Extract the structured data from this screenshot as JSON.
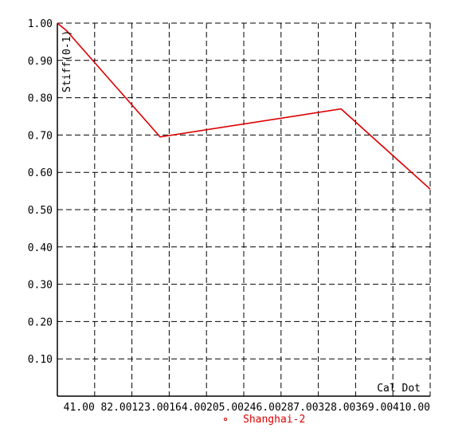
{
  "chart_data": {
    "type": "line",
    "title": "",
    "xlabel": "Cal Dot",
    "ylabel": "Stiff(0-1)",
    "xlim": [
      0,
      410
    ],
    "ylim": [
      0,
      1.0
    ],
    "x_ticks": [
      41,
      82,
      123,
      164,
      205,
      246,
      287,
      328,
      369,
      410
    ],
    "x_tick_labels": [
      "41.00",
      "82.00",
      "123.00",
      "164.00",
      "205.00",
      "246.00",
      "287.00",
      "328.00",
      "369.00",
      "410.00"
    ],
    "y_ticks": [
      0.1,
      0.2,
      0.3,
      0.4,
      0.5,
      0.6,
      0.7,
      0.8,
      0.9,
      1.0
    ],
    "y_tick_labels": [
      "0.10",
      "0.20",
      "0.30",
      "0.40",
      "0.50",
      "0.60",
      "0.70",
      "0.80",
      "0.90",
      "1.00"
    ],
    "grid": true,
    "legend_position": "bottom-center",
    "series": [
      {
        "name": "Shanghai-2",
        "color": "#dd0000",
        "marker": "circle",
        "x": [
          0,
          10,
          113,
          312,
          410
        ],
        "y": [
          1.0,
          0.98,
          0.695,
          0.77,
          0.555
        ]
      }
    ]
  }
}
